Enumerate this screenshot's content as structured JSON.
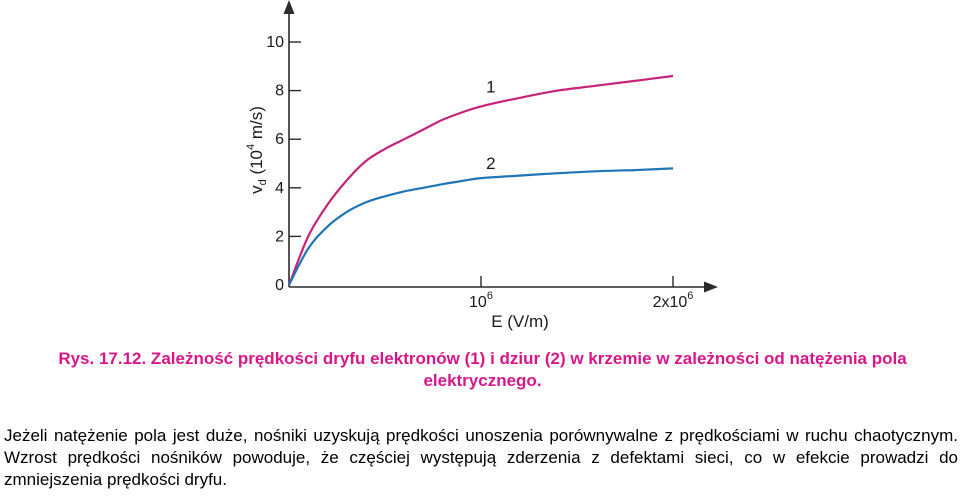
{
  "chart_data": {
    "type": "line",
    "ylabel": "v_d (10^4 m/s)",
    "ylabel_main": "v",
    "ylabel_sub": "d",
    "ylabel_open": " (10",
    "ylabel_sup": "4",
    "ylabel_close": " m/s)",
    "xlabel": "E (V/m)",
    "xlim": [
      0,
      2000000
    ],
    "ylim": [
      0,
      10
    ],
    "yticks": [
      0,
      2,
      4,
      6,
      8,
      10
    ],
    "yticklabels": [
      "0",
      "2",
      "4",
      "6",
      "8",
      "10"
    ],
    "xticks": [
      {
        "value": 1000000,
        "base": "10",
        "exp": "6"
      },
      {
        "value": 2000000,
        "base": "2x10",
        "exp": "6"
      }
    ],
    "grid": false,
    "series": [
      {
        "name": "1",
        "color": "#c8237a",
        "x": [
          0,
          100000,
          200000,
          300000,
          400000,
          500000,
          600000,
          700000,
          800000,
          900000,
          1000000,
          1200000,
          1400000,
          1600000,
          1800000,
          2000000
        ],
        "y": [
          0,
          2.0,
          3.3,
          4.3,
          5.1,
          5.6,
          6.0,
          6.4,
          6.8,
          7.1,
          7.35,
          7.7,
          8.0,
          8.2,
          8.4,
          8.6
        ]
      },
      {
        "name": "2",
        "color": "#1f75b6",
        "x": [
          0,
          100000,
          200000,
          300000,
          400000,
          500000,
          600000,
          700000,
          800000,
          900000,
          1000000,
          1200000,
          1400000,
          1600000,
          1800000,
          2000000
        ],
        "y": [
          0,
          1.5,
          2.4,
          3.0,
          3.4,
          3.65,
          3.85,
          4.0,
          4.15,
          4.28,
          4.4,
          4.5,
          4.6,
          4.68,
          4.73,
          4.8
        ]
      }
    ]
  },
  "caption": "Rys. 17.12. Zależność prędkości dryfu elektronów (1) i dziur (2) w krzemie w zależności od natężenia pola elektrycznego.",
  "paragraph": "Jeżeli natężenie pola jest duże, nośniki uzyskują prędkości unoszenia porównywalne z prędkościami w ruchu chaotycznym. Wzrost prędkości nośników powoduje, że częściej występują zderzenia z defektami sieci, co w efekcie prowadzi do zmniejszenia prędkości dryfu."
}
